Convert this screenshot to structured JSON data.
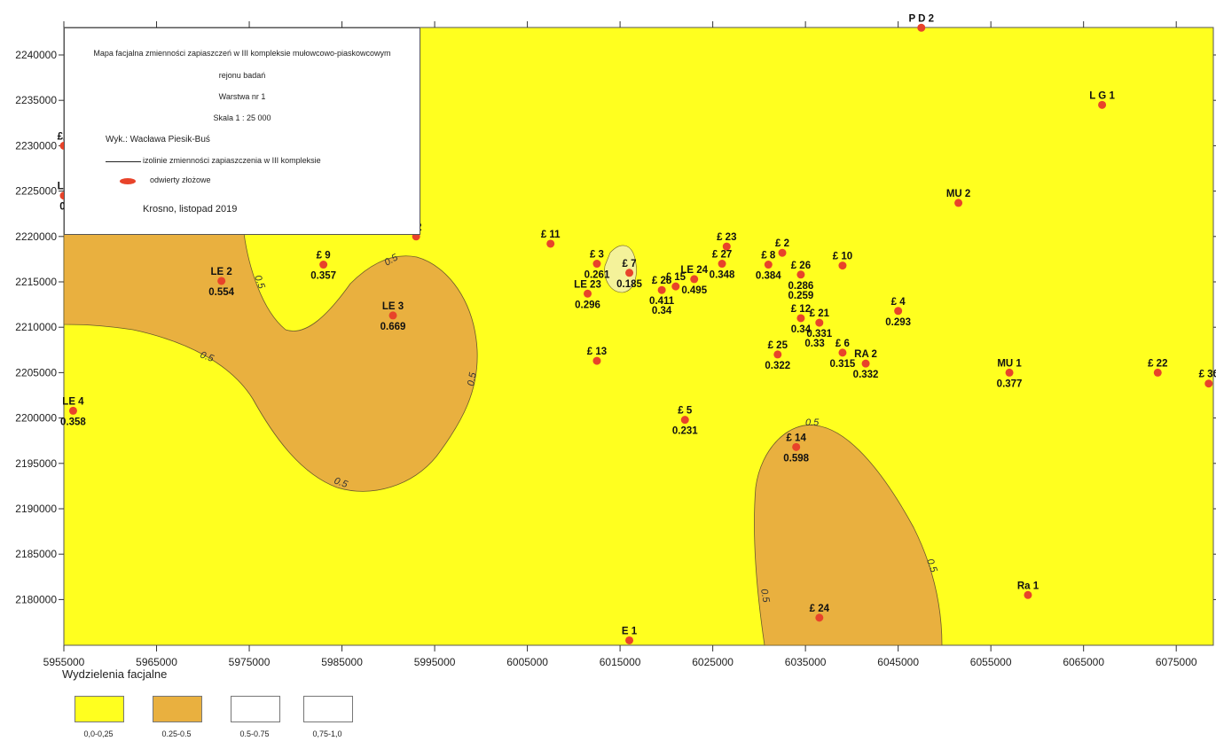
{
  "legend": {
    "title_line1": "Mapa facjalna zmienności zapiaszczeń w  III kompleksie mułowcowo-piaskowcowym",
    "title_line2": "rejonu badań",
    "layer": "Warstwa nr 1",
    "scale": "Skala 1 : 25 000",
    "author": "Wyk.: Wacława Piesik-Buś",
    "isoline_label": "izolinie zmienności zapiaszczenia w III kompleksie",
    "well_label": "odwierty złożowe",
    "place_date": "Krosno, listopad 2019"
  },
  "facies": {
    "title": "Wydzielenia facjalne",
    "classes": [
      {
        "label": "0,0-0,25",
        "color": "#ffff1f"
      },
      {
        "label": "0.25-0.5",
        "color": "#e9b03f"
      },
      {
        "label": "0.5-0.75",
        "color": "#ffffff"
      },
      {
        "label": "0,75-1,0",
        "color": "#ffffff"
      }
    ]
  },
  "axes": {
    "x_ticks": [
      "5955000",
      "5965000",
      "5975000",
      "5985000",
      "5995000",
      "6005000",
      "6015000",
      "6025000",
      "6035000",
      "6045000",
      "6055000",
      "6065000",
      "6075000"
    ],
    "y_ticks": [
      "2240000",
      "2235000",
      "2230000",
      "2225000",
      "2220000",
      "2215000",
      "2210000",
      "2205000",
      "2200000",
      "2195000",
      "2190000",
      "2185000",
      "2180000"
    ]
  },
  "isoline_labels": [
    "0.5",
    "0.5",
    "0.5",
    "0.5",
    "0.5",
    "0.5",
    "0.5",
    "0.5"
  ],
  "wells": [
    {
      "name": "P D 2",
      "value": "",
      "x": 6047500,
      "y": 2243000
    },
    {
      "name": "L G 1",
      "value": "",
      "x": 6067000,
      "y": 2234500
    },
    {
      "name": "£A",
      "value": "",
      "x": 5955000,
      "y": 2230000
    },
    {
      "name": "LE",
      "value": "0.",
      "x": 5955000,
      "y": 2224500
    },
    {
      "name": "MU 2",
      "value": "",
      "x": 6051500,
      "y": 2223700
    },
    {
      "name": "22",
      "value": "",
      "x": 5993000,
      "y": 2220000
    },
    {
      "name": "£ 11",
      "value": "",
      "x": 6007500,
      "y": 2219200
    },
    {
      "name": "£ 23",
      "value": "",
      "x": 6026500,
      "y": 2218900
    },
    {
      "name": "£ 2",
      "value": "",
      "x": 6032500,
      "y": 2218200
    },
    {
      "name": "£ 9",
      "value": "0.357",
      "x": 5983000,
      "y": 2216900
    },
    {
      "name": "LE 2",
      "value": "0.554",
      "x": 5972000,
      "y": 2215100
    },
    {
      "name": "£ 3",
      "value": "0.261",
      "x": 6012500,
      "y": 2217000
    },
    {
      "name": "£ 7",
      "value": "0.185",
      "x": 6016000,
      "y": 2216000
    },
    {
      "name": "£ 27",
      "value": "0.348",
      "x": 6026000,
      "y": 2217000
    },
    {
      "name": "£ 8",
      "value": "0.384",
      "x": 6031000,
      "y": 2216900
    },
    {
      "name": "£ 26",
      "value": "0.286",
      "x": 6034500,
      "y": 2215800
    },
    {
      "name": "",
      "value": "0.259",
      "x": 6034500,
      "y": 2215800
    },
    {
      "name": "£ 10",
      "value": "",
      "x": 6039000,
      "y": 2216800
    },
    {
      "name": "LE 24",
      "value": "0.495",
      "x": 6023000,
      "y": 2215300
    },
    {
      "name": "£ 15",
      "value": "",
      "x": 6021000,
      "y": 2214500
    },
    {
      "name": "£ 28",
      "value": "0.411",
      "x": 6019500,
      "y": 2214100
    },
    {
      "name": "",
      "value": "0.34",
      "x": 6019500,
      "y": 2214100
    },
    {
      "name": "LE 23",
      "value": "0.296",
      "x": 6011500,
      "y": 2213700
    },
    {
      "name": "LE 3",
      "value": "0.669",
      "x": 5990500,
      "y": 2211300
    },
    {
      "name": "£ 12",
      "value": "0.34",
      "x": 6034500,
      "y": 2211000
    },
    {
      "name": "£ 21",
      "value": "0.331",
      "x": 6036500,
      "y": 2210500
    },
    {
      "name": "",
      "value": "0.33",
      "x": 6036000,
      "y": 2210500
    },
    {
      "name": "£ 4",
      "value": "0.293",
      "x": 6045000,
      "y": 2211800
    },
    {
      "name": "£ 25",
      "value": "0.322",
      "x": 6032000,
      "y": 2207000
    },
    {
      "name": "£ 6",
      "value": "0.315",
      "x": 6039000,
      "y": 2207200
    },
    {
      "name": "RA 2",
      "value": "0.332",
      "x": 6041500,
      "y": 2206000
    },
    {
      "name": "£ 13",
      "value": "",
      "x": 6012500,
      "y": 2206300
    },
    {
      "name": "MU 1",
      "value": "0.377",
      "x": 6057000,
      "y": 2205000
    },
    {
      "name": "£ 22",
      "value": "",
      "x": 6073000,
      "y": 2205000
    },
    {
      "name": "£ 30",
      "value": "",
      "x": 6078500,
      "y": 2203800
    },
    {
      "name": "LE 4",
      "value": "0.358",
      "x": 5956000,
      "y": 2200800
    },
    {
      "name": "£ 5",
      "value": "0.231",
      "x": 6022000,
      "y": 2199800
    },
    {
      "name": "£ 14",
      "value": "0.598",
      "x": 6034000,
      "y": 2196800
    },
    {
      "name": "Ra 1",
      "value": "",
      "x": 6059000,
      "y": 2180500
    },
    {
      "name": "£ 24",
      "value": "",
      "x": 6036500,
      "y": 2178000
    },
    {
      "name": "E 1",
      "value": "",
      "x": 6016000,
      "y": 2175500
    }
  ]
}
